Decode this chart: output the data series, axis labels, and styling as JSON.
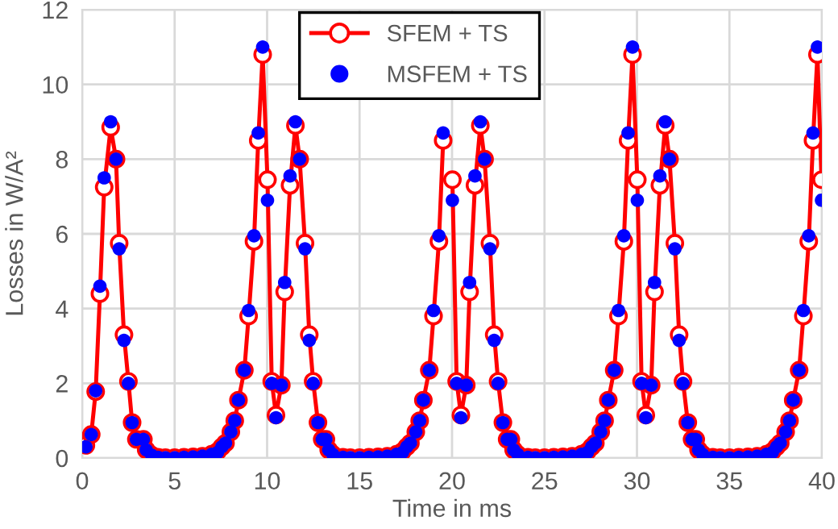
{
  "chart_data": {
    "type": "line",
    "xlabel": "Time in ms",
    "ylabel": "Losses in W/A²",
    "x": [
      0.2,
      0.49,
      0.73,
      0.96,
      1.19,
      1.54,
      1.83,
      2.0,
      2.26,
      2.5,
      2.7,
      2.93,
      3.31,
      3.46,
      3.75,
      4.1,
      4.5,
      5,
      5.5,
      6,
      6.5,
      7,
      7.32,
      7.55,
      7.75,
      8.04,
      8.25,
      8.45,
      8.77,
      9.0,
      9.29,
      9.52,
      9.76,
      10.02,
      10.25,
      10.48,
      10.77,
      10.95,
      11.24,
      11.53,
      11.76,
      12.05,
      12.28,
      12.49,
      12.75,
      12.98,
      13.18,
      13.33,
      13.55,
      14.1,
      14.5,
      15,
      15.5,
      16,
      16.5,
      17,
      17.32,
      17.55,
      17.75,
      18.04,
      18.25,
      18.45,
      18.77,
      19.0,
      19.29,
      19.52,
      19.76,
      20.02,
      20.25,
      20.48,
      20.77,
      20.95,
      21.24,
      21.53,
      21.76,
      22.05,
      22.28,
      22.49,
      22.75,
      22.98,
      23.18,
      23.33,
      23.55,
      24.1,
      24.5,
      25,
      25.5,
      26,
      26.5,
      27,
      27.32,
      27.55,
      27.75,
      28.04,
      28.25,
      28.45,
      28.77,
      29.0,
      29.29,
      29.52,
      29.76,
      30.02,
      30.25,
      30.48,
      30.77,
      30.95,
      31.24,
      31.53,
      31.76,
      32.05,
      32.28,
      32.49,
      32.75,
      32.98,
      33.18,
      33.33,
      33.55,
      34.1,
      34.5,
      35,
      35.5,
      36,
      36.5,
      37,
      37.32,
      37.55,
      37.75,
      38.04,
      38.25,
      38.45,
      38.77,
      39.0,
      39.29,
      39.52,
      39.76,
      39.98
    ],
    "series": [
      {
        "name": "SFEM + TS",
        "color": "#ff0000",
        "marker": "circle",
        "line_style": "solid",
        "values": [
          0.34,
          0.63,
          1.78,
          4.4,
          7.25,
          8.85,
          8.0,
          5.75,
          3.3,
          2.05,
          0.95,
          0.5,
          0.5,
          0.22,
          0.08,
          0.02,
          0.01,
          0.01,
          0.02,
          0.03,
          0.05,
          0.1,
          0.18,
          0.3,
          0.4,
          0.7,
          1.0,
          1.55,
          2.35,
          3.8,
          5.8,
          8.5,
          10.8,
          7.45,
          2.05,
          1.15,
          1.95,
          4.45,
          7.3,
          8.9,
          8.0,
          5.75,
          3.3,
          2.05,
          0.95,
          0.5,
          0.5,
          0.22,
          0.1,
          0.02,
          0.01,
          0.01,
          0.02,
          0.03,
          0.05,
          0.1,
          0.18,
          0.3,
          0.4,
          0.7,
          1.0,
          1.55,
          2.35,
          3.8,
          5.8,
          8.5,
          null,
          7.45,
          2.05,
          1.15,
          1.95,
          4.45,
          7.3,
          8.9,
          8.0,
          5.75,
          3.3,
          2.05,
          0.95,
          0.5,
          0.5,
          0.22,
          0.1,
          0.02,
          0.01,
          0.01,
          0.02,
          0.03,
          0.05,
          0.1,
          0.18,
          0.3,
          0.4,
          0.7,
          1.0,
          1.55,
          2.35,
          3.8,
          5.8,
          8.5,
          10.8,
          7.45,
          2.05,
          1.15,
          1.95,
          4.45,
          7.3,
          8.9,
          8.0,
          5.75,
          3.3,
          2.05,
          0.95,
          0.5,
          0.5,
          0.22,
          0.1,
          0.02,
          0.01,
          0.01,
          0.02,
          0.03,
          0.05,
          0.1,
          0.18,
          0.3,
          0.4,
          0.7,
          1.0,
          1.55,
          2.35,
          3.8,
          5.8,
          8.5,
          10.8,
          7.45
        ]
      },
      {
        "name": "MSFEM + TS",
        "type": "scatter",
        "color": "#0000ff",
        "marker": "circle",
        "values": [
          0.3,
          0.63,
          1.8,
          4.6,
          7.5,
          9.0,
          8.0,
          5.6,
          3.15,
          2.0,
          0.95,
          0.5,
          0.5,
          0.22,
          0.08,
          0.02,
          0.01,
          0.01,
          0.02,
          0.03,
          0.05,
          0.1,
          0.15,
          0.3,
          0.4,
          0.7,
          1.0,
          1.55,
          2.35,
          3.95,
          5.95,
          8.7,
          11.0,
          6.9,
          2.0,
          1.08,
          1.95,
          4.7,
          7.55,
          9.0,
          8.0,
          5.6,
          3.15,
          2.0,
          0.95,
          0.5,
          0.5,
          0.22,
          0.1,
          0.02,
          0.01,
          0.01,
          0.02,
          0.03,
          0.05,
          0.1,
          0.15,
          0.3,
          0.4,
          0.7,
          1.0,
          1.55,
          2.35,
          3.95,
          5.95,
          8.7,
          null,
          6.9,
          2.0,
          1.08,
          1.95,
          4.7,
          7.55,
          9.0,
          8.0,
          5.6,
          3.15,
          2.0,
          0.95,
          0.5,
          0.5,
          0.22,
          0.1,
          0.02,
          0.01,
          0.01,
          0.02,
          0.03,
          0.05,
          0.1,
          0.15,
          0.3,
          0.4,
          0.7,
          1.0,
          1.55,
          2.35,
          3.95,
          5.95,
          8.7,
          11.0,
          6.9,
          2.0,
          1.08,
          1.95,
          4.7,
          7.55,
          9.0,
          8.0,
          5.6,
          3.15,
          2.0,
          0.95,
          0.5,
          0.5,
          0.22,
          0.1,
          0.02,
          0.01,
          0.01,
          0.02,
          0.03,
          0.05,
          0.1,
          0.15,
          0.3,
          0.4,
          0.7,
          1.0,
          1.55,
          2.35,
          3.95,
          5.95,
          8.7,
          11.0,
          6.9
        ]
      }
    ],
    "xlim": [
      0,
      40
    ],
    "xticks": [
      0,
      5,
      10,
      15,
      20,
      25,
      30,
      35,
      40
    ],
    "ylim": [
      0,
      12
    ],
    "yticks": [
      0,
      2,
      4,
      6,
      8,
      10,
      12
    ],
    "grid": true,
    "legend": "top"
  }
}
